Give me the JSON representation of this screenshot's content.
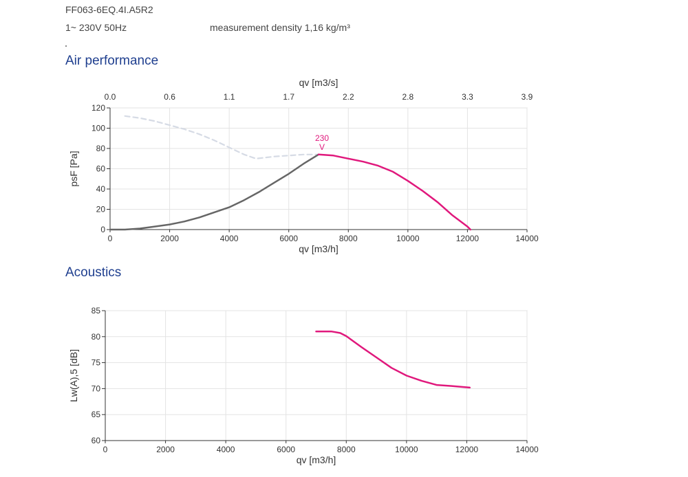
{
  "header": {
    "model": "FF063-6EQ.4I.A5R2",
    "supply": "1~ 230V 50Hz",
    "density": "measurement density 1,16 kg/m³"
  },
  "sections": {
    "air": "Air performance",
    "acoustics": "Acoustics"
  },
  "colors": {
    "primary": "#e0187c",
    "secondary": "#666666",
    "dashed": "#d6dbe5",
    "grid": "#e3e3e3"
  },
  "chart_data": [
    {
      "type": "line",
      "xlabel": "qv [m3/h]",
      "ylabel": "psF [Pa]",
      "x2label": "qv [m3/s]",
      "xlim": [
        0,
        14000
      ],
      "ylim": [
        0,
        120
      ],
      "xticks": [
        "0",
        "2000",
        "4000",
        "6000",
        "8000",
        "10000",
        "12000",
        "14000"
      ],
      "yticks": [
        "0",
        "20",
        "40",
        "60",
        "80",
        "100",
        "120"
      ],
      "x2ticks": [
        "0.0",
        "0.6",
        "1.1",
        "1.7",
        "2.2",
        "2.8",
        "3.3",
        "3.9"
      ],
      "grid": true,
      "annotations": [
        {
          "label": "230",
          "sublabel": "V",
          "x": 6700,
          "y": 74
        }
      ],
      "series": [
        {
          "style": "dashed",
          "x": [
            500,
            1000,
            1500,
            2000,
            2500,
            3000,
            3500,
            4000,
            4500,
            4900,
            5500,
            6000,
            6500,
            7000
          ],
          "y": [
            112,
            110,
            107,
            103,
            99,
            94,
            88,
            81,
            74,
            70,
            72,
            73,
            74,
            74
          ]
        },
        {
          "style": "solid-gray",
          "x": [
            0,
            500,
            1000,
            1500,
            2000,
            2500,
            3000,
            3500,
            4000,
            4500,
            5000,
            5500,
            6000,
            6500,
            7000
          ],
          "y": [
            0,
            0,
            1,
            3,
            5,
            8,
            12,
            17,
            22,
            29,
            37,
            46,
            55,
            65,
            74
          ]
        },
        {
          "style": "solid-primary",
          "x": [
            7000,
            7500,
            8000,
            8500,
            9000,
            9500,
            10000,
            10500,
            11000,
            11500,
            12000,
            12100
          ],
          "y": [
            74,
            73,
            70,
            67,
            63,
            57,
            48,
            38,
            27,
            14,
            3,
            0
          ]
        }
      ]
    },
    {
      "type": "line",
      "xlabel": "qv [m3/h]",
      "ylabel": "Lw(A),5 [dB]",
      "xlim": [
        0,
        14000
      ],
      "ylim": [
        60,
        85
      ],
      "xticks": [
        "0",
        "2000",
        "4000",
        "6000",
        "8000",
        "10000",
        "12000",
        "14000"
      ],
      "yticks": [
        "60",
        "65",
        "70",
        "75",
        "80",
        "85"
      ],
      "grid": true,
      "series": [
        {
          "style": "solid-primary",
          "x": [
            7000,
            7500,
            7800,
            8000,
            8500,
            9000,
            9500,
            10000,
            10500,
            11000,
            11500,
            12100
          ],
          "y": [
            81,
            81,
            80.7,
            80.1,
            78,
            76,
            74,
            72.5,
            71.5,
            70.7,
            70.5,
            70.2
          ]
        }
      ]
    }
  ]
}
